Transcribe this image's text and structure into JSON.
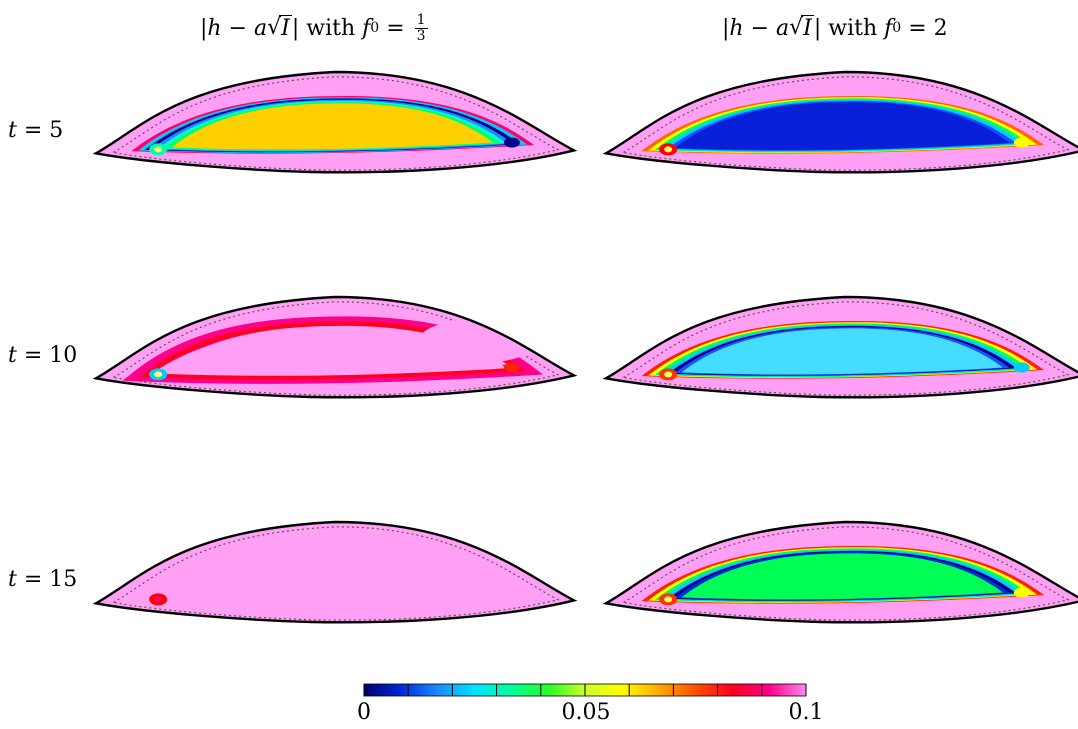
{
  "titles": {
    "left_expr": "|h − a√I| with f₀ = 1/3",
    "right_expr": "|h − a√I| with f₀ = 2"
  },
  "rows": [
    {
      "label": "t = 5"
    },
    {
      "label": "t = 10"
    },
    {
      "label": "t = 15"
    }
  ],
  "colorbar": {
    "min_label": "0",
    "mid_label": "0.05",
    "max_label": "0.1",
    "range": [
      0,
      0.1
    ],
    "colors": [
      "#00006a",
      "#0028d8",
      "#1a8cff",
      "#00e4ff",
      "#00ff9c",
      "#28ff28",
      "#ccff28",
      "#ffff00",
      "#ffaa00",
      "#ff5000",
      "#ff0022",
      "#ff0088",
      "#ff88f0"
    ]
  },
  "panels": [
    {
      "row": 0,
      "col": 0,
      "outer": "#ffa0f4",
      "rings": [
        "#ff0066",
        "#00ccff",
        "#00008b",
        "#2288ff",
        "#00ffcc",
        "#00ff66"
      ],
      "core": "#ffd000",
      "blob_l": "#00ffaa",
      "blob_r": "#00008b"
    },
    {
      "row": 0,
      "col": 1,
      "outer": "#ffa0f4",
      "rings": [
        "#ff6600",
        "#ffff00",
        "#00ff66",
        "#00ccff",
        "#1050ff"
      ],
      "core": "#0a20d8",
      "blob_l": "#ff0000",
      "blob_r": "#ffff00"
    },
    {
      "row": 1,
      "col": 0,
      "outer": "#ffa0f4",
      "rings": [
        "#ff0088",
        "#ff0022"
      ],
      "core": "#ffa0f4",
      "blob_l": "#00ccff",
      "blob_r": "#ff2200",
      "arc": true
    },
    {
      "row": 1,
      "col": 1,
      "outer": "#ffa0f4",
      "rings": [
        "#ff2200",
        "#ffff00",
        "#00ff66",
        "#00ccff",
        "#00008b",
        "#1a50ff"
      ],
      "core": "#44dcff",
      "blob_l": "#ff3300",
      "blob_r": "#00ccff"
    },
    {
      "row": 2,
      "col": 0,
      "outer": "#ffa0f4",
      "rings": [],
      "core": "#ffa0f4",
      "blob_l": "#ff0000",
      "blob_r": null
    },
    {
      "row": 2,
      "col": 1,
      "outer": "#ffa0f4",
      "rings": [
        "#ff2200",
        "#ffff00",
        "#00ff66",
        "#00ccff",
        "#00008b",
        "#0030d8"
      ],
      "core": "#00ff55",
      "blob_l": "#ff3300",
      "blob_r": "#ffff00"
    }
  ]
}
